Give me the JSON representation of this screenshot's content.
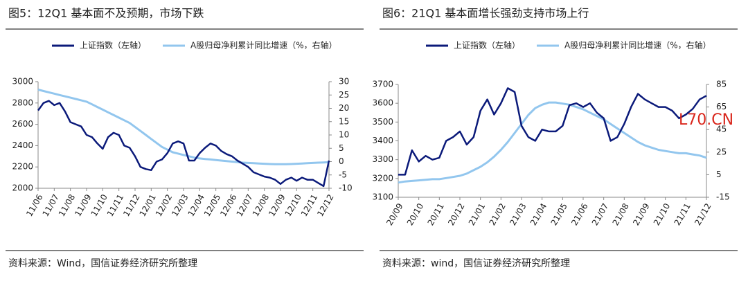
{
  "chart_data": [
    {
      "type": "line",
      "title": "图5：12Q1 基本面不及预期，市场下跌",
      "categories": [
        "11/06",
        null,
        null,
        "11/07",
        null,
        null,
        "11/08",
        null,
        null,
        "11/09",
        null,
        null,
        "11/10",
        null,
        null,
        "11/11",
        null,
        null,
        "11/12",
        null,
        null,
        "12/01",
        null,
        null,
        "12/02",
        null,
        null,
        "12/03",
        null,
        null,
        "12/04",
        null,
        null,
        "12/05",
        null,
        null,
        "12/06",
        null,
        null,
        "12/07",
        null,
        null,
        "12/08",
        null,
        null,
        "12/09",
        null,
        null,
        "12/10",
        null,
        null,
        "12/11",
        null,
        null,
        "12/12"
      ],
      "series": [
        {
          "name": "上证指数（左轴）",
          "color": "#0b1a7a",
          "values": [
            2730,
            2800,
            2820,
            2780,
            2800,
            2720,
            2620,
            2600,
            2580,
            2500,
            2480,
            2420,
            2370,
            2480,
            2520,
            2500,
            2400,
            2380,
            2300,
            2200,
            2180,
            2170,
            2250,
            2270,
            2330,
            2420,
            2440,
            2420,
            2260,
            2260,
            2330,
            2380,
            2420,
            2400,
            2350,
            2320,
            2300,
            2260,
            2230,
            2200,
            2150,
            2130,
            2110,
            2100,
            2080,
            2040,
            2080,
            2100,
            2070,
            2100,
            2080,
            2080,
            2050,
            2020,
            2260
          ]
        },
        {
          "name": "A股归母净利累计同比增速（%，右轴）",
          "color": "#92c6ee",
          "axis": "y2",
          "values": [
            27,
            26.5,
            26,
            25.5,
            25,
            24.5,
            24,
            23.5,
            23,
            22.5,
            21.5,
            20.5,
            19.5,
            18.5,
            17.5,
            16.5,
            15.5,
            14.5,
            13,
            11.5,
            10,
            8.5,
            7,
            5.5,
            4.5,
            3.5,
            3,
            2.5,
            2,
            1.5,
            1.2,
            1,
            0.8,
            0.6,
            0.4,
            0.2,
            0,
            -0.2,
            -0.4,
            -0.5,
            -0.6,
            -0.7,
            -0.8,
            -0.9,
            -1,
            -1,
            -1,
            -0.9,
            -0.8,
            -0.7,
            -0.6,
            -0.5,
            -0.4,
            -0.3,
            -0.2
          ]
        }
      ],
      "ylim": [
        2000,
        3000
      ],
      "yticks": [
        2000,
        2200,
        2400,
        2600,
        2800,
        3000
      ],
      "y2lim": [
        -10,
        30
      ],
      "y2ticks": [
        -10,
        -5,
        0,
        5,
        10,
        15,
        20,
        25,
        30
      ],
      "legend": "top",
      "source": "资料来源：Wind，国信证券经济研究所整理"
    },
    {
      "type": "line",
      "title": "图6：21Q1 基本面增长强劲支持市场上行",
      "categories": [
        "20/09",
        null,
        null,
        "20/10",
        null,
        null,
        "20/11",
        null,
        null,
        "20/12",
        null,
        null,
        "21/01",
        null,
        null,
        "21/02",
        null,
        null,
        "21/03",
        null,
        null,
        "21/04",
        null,
        null,
        "21/05",
        null,
        null,
        "21/06",
        null,
        null,
        "21/07",
        null,
        null,
        "21/08",
        null,
        null,
        "21/09",
        null,
        null,
        "21/10",
        null,
        null,
        "21/11",
        null,
        null,
        "21/12"
      ],
      "series": [
        {
          "name": "上证指数（左轴）",
          "color": "#0b1a7a",
          "values": [
            3220,
            3220,
            3350,
            3290,
            3320,
            3300,
            3310,
            3400,
            3420,
            3450,
            3380,
            3420,
            3560,
            3620,
            3540,
            3600,
            3680,
            3660,
            3480,
            3420,
            3400,
            3460,
            3450,
            3450,
            3480,
            3590,
            3600,
            3580,
            3600,
            3550,
            3520,
            3400,
            3420,
            3490,
            3580,
            3650,
            3620,
            3600,
            3580,
            3580,
            3560,
            3520,
            3540,
            3570,
            3620,
            3640
          ]
        },
        {
          "name": "A股归母净利累计同比增速（%，右轴）",
          "color": "#92c6ee",
          "axis": "y2",
          "values": [
            -2,
            -1,
            -0.5,
            0,
            0.5,
            1,
            1,
            2,
            3,
            4,
            6,
            9,
            12,
            16,
            21,
            27,
            34,
            42,
            50,
            58,
            64,
            67,
            69,
            69,
            68,
            67,
            65,
            63,
            60,
            57,
            54,
            50,
            46,
            42,
            38,
            34,
            31,
            29,
            27,
            26,
            25,
            24,
            24,
            23,
            22,
            20
          ]
        }
      ],
      "ylim": [
        3100,
        3700
      ],
      "yticks": [
        3100,
        3200,
        3300,
        3400,
        3500,
        3600,
        3700
      ],
      "y2lim": [
        -15,
        85
      ],
      "y2ticks": [
        -15,
        5,
        25,
        45,
        65,
        85
      ],
      "legend": "top",
      "source": "资料来源：wind，国信证券经济研究所整理",
      "annotations": [
        "L70.CN"
      ]
    }
  ]
}
